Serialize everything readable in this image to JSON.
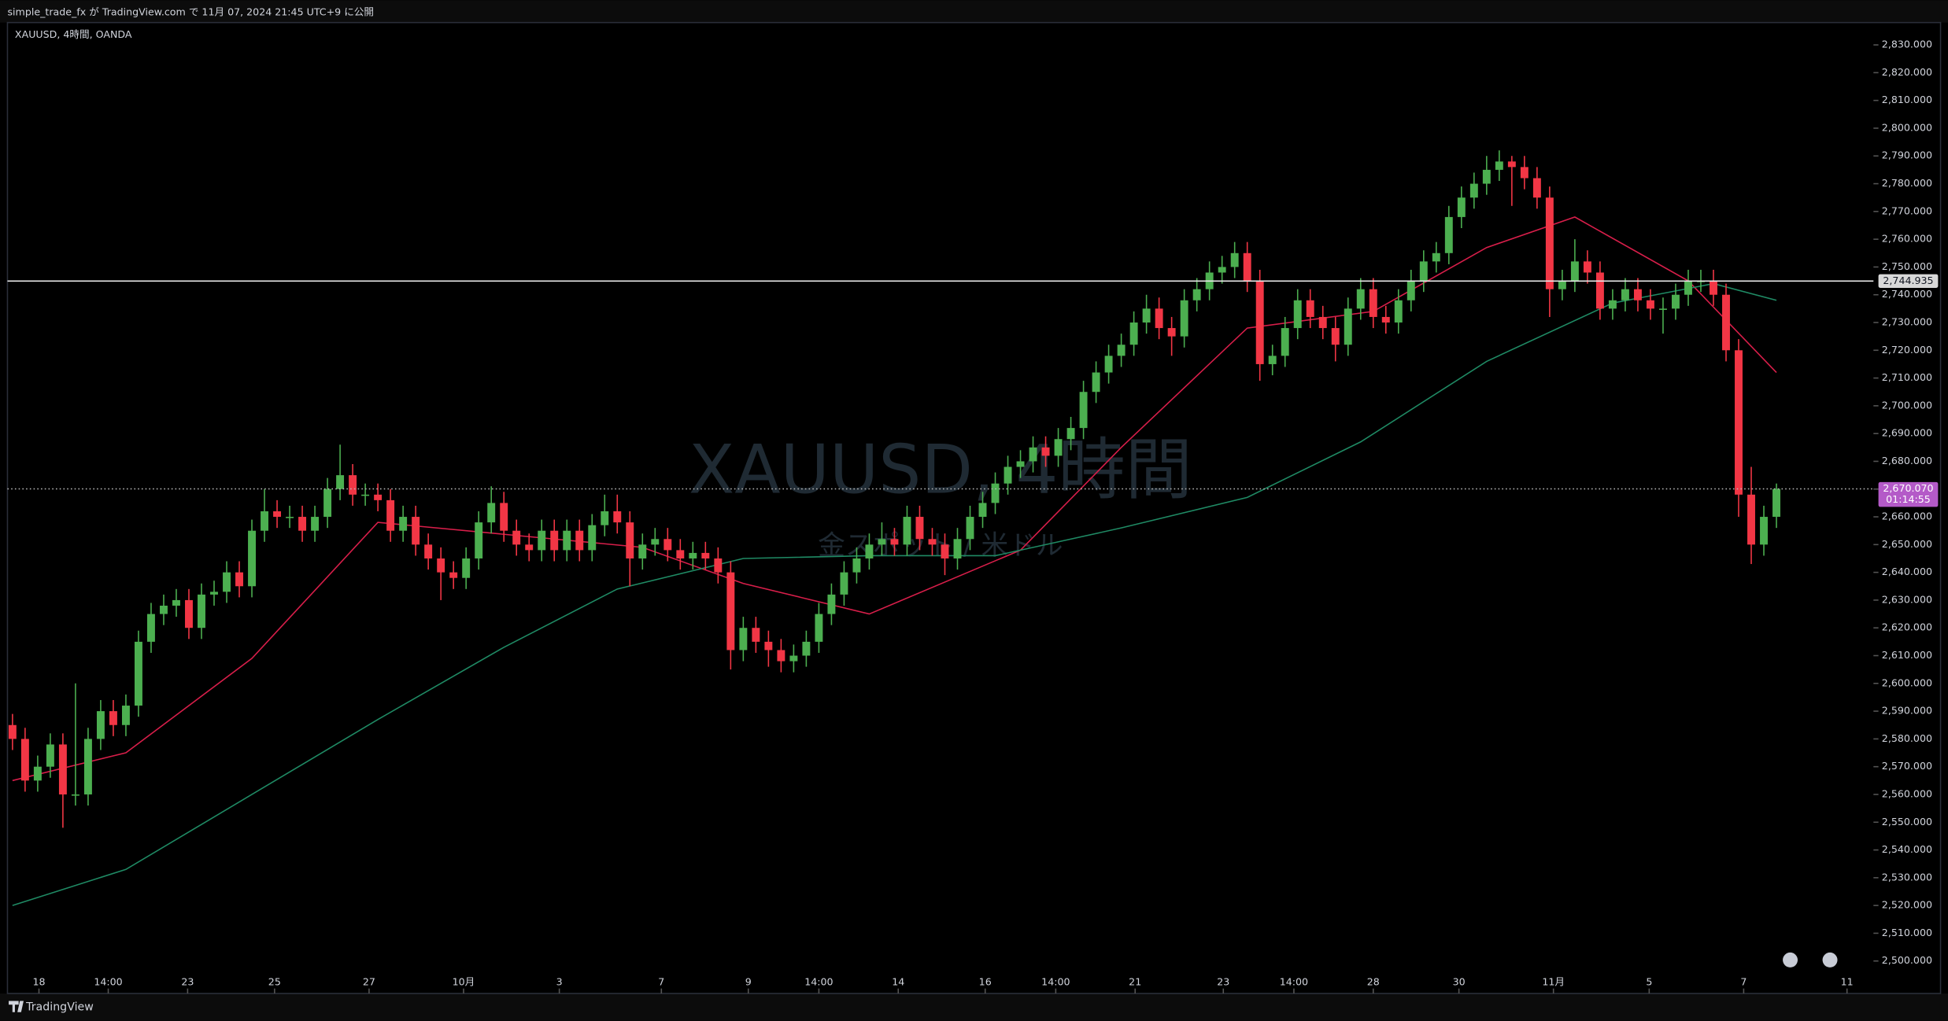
{
  "chart_data": {
    "type": "candlestick",
    "header": "simple_trade_fx が TradingView.com で 11月 07, 2024 21:45 UTC+9 に公開",
    "title": "XAUUSD, 4時間, OANDA",
    "watermark": "XAUUSD, 4時間",
    "watermark_sub": "金スポット / 米ドル",
    "brand": "TradingView",
    "up_color": "#4caf50",
    "down_color": "#f23645",
    "open": [
      2585,
      2580,
      2565,
      2570,
      2578,
      2560,
      2560,
      2580,
      2590,
      2585,
      2592,
      2615,
      2625,
      2628,
      2630,
      2620,
      2632,
      2633,
      2640,
      2635,
      2655,
      2662,
      2660,
      2660,
      2655,
      2660,
      2670,
      2675,
      2668,
      2668,
      2666,
      2655,
      2660,
      2650,
      2645,
      2640,
      2638,
      2645,
      2658,
      2665,
      2655,
      2650,
      2648,
      2655,
      2648,
      2655,
      2648,
      2657,
      2662,
      2658,
      2645,
      2650,
      2652,
      2648,
      2645,
      2647,
      2645,
      2640,
      2612,
      2620,
      2615,
      2612,
      2608,
      2610,
      2615,
      2625,
      2632,
      2640,
      2645,
      2650,
      2652,
      2650,
      2660,
      2652,
      2650,
      2645,
      2652,
      2660,
      2665,
      2672,
      2678,
      2680,
      2685,
      2682,
      2688,
      2692,
      2705,
      2712,
      2718,
      2722,
      2730,
      2735,
      2728,
      2725,
      2738,
      2742,
      2748,
      2750,
      2755,
      2745,
      2715,
      2718,
      2728,
      2738,
      2732,
      2728,
      2722,
      2735,
      2742,
      2732,
      2730,
      2738,
      2745,
      2752,
      2755,
      2768,
      2775,
      2780,
      2785,
      2788,
      2786,
      2782,
      2775,
      2742,
      2745,
      2752,
      2748,
      2735,
      2738,
      2742,
      2738,
      2735,
      2735,
      2740,
      2745,
      2745,
      2740,
      2720,
      2668,
      2650,
      2660
    ],
    "high": [
      2589,
      2584,
      2574,
      2582,
      2582,
      2600,
      2584,
      2594,
      2594,
      2596,
      2619,
      2629,
      2632,
      2634,
      2634,
      2636,
      2637,
      2644,
      2644,
      2659,
      2670,
      2666,
      2664,
      2664,
      2664,
      2674,
      2686,
      2679,
      2672,
      2672,
      2670,
      2664,
      2664,
      2654,
      2649,
      2644,
      2649,
      2662,
      2671,
      2669,
      2659,
      2654,
      2659,
      2659,
      2659,
      2659,
      2661,
      2668,
      2668,
      2662,
      2654,
      2656,
      2656,
      2652,
      2651,
      2651,
      2649,
      2644,
      2624,
      2624,
      2619,
      2616,
      2614,
      2619,
      2629,
      2636,
      2644,
      2649,
      2654,
      2658,
      2656,
      2664,
      2664,
      2656,
      2654,
      2656,
      2664,
      2669,
      2676,
      2682,
      2684,
      2689,
      2689,
      2692,
      2696,
      2709,
      2716,
      2722,
      2726,
      2734,
      2740,
      2739,
      2732,
      2742,
      2746,
      2752,
      2754,
      2759,
      2759,
      2749,
      2722,
      2732,
      2742,
      2742,
      2736,
      2732,
      2739,
      2746,
      2746,
      2736,
      2742,
      2749,
      2756,
      2759,
      2772,
      2779,
      2784,
      2790,
      2792,
      2790,
      2790,
      2786,
      2779,
      2749,
      2760,
      2756,
      2752,
      2742,
      2746,
      2746,
      2742,
      2739,
      2744,
      2749,
      2749,
      2749,
      2744,
      2724,
      2678,
      2664,
      2672
    ],
    "low": [
      2576,
      2561,
      2561,
      2566,
      2548,
      2556,
      2556,
      2576,
      2581,
      2581,
      2588,
      2611,
      2621,
      2624,
      2616,
      2616,
      2628,
      2629,
      2631,
      2631,
      2651,
      2656,
      2656,
      2651,
      2651,
      2656,
      2666,
      2664,
      2664,
      2662,
      2651,
      2651,
      2646,
      2641,
      2630,
      2634,
      2634,
      2641,
      2654,
      2651,
      2646,
      2644,
      2644,
      2644,
      2644,
      2644,
      2644,
      2653,
      2654,
      2635,
      2641,
      2646,
      2644,
      2641,
      2641,
      2641,
      2636,
      2605,
      2608,
      2611,
      2606,
      2604,
      2604,
      2606,
      2611,
      2621,
      2628,
      2636,
      2641,
      2646,
      2646,
      2646,
      2648,
      2646,
      2639,
      2641,
      2648,
      2656,
      2661,
      2668,
      2674,
      2676,
      2678,
      2678,
      2684,
      2688,
      2701,
      2708,
      2714,
      2718,
      2726,
      2724,
      2718,
      2721,
      2734,
      2738,
      2744,
      2746,
      2741,
      2709,
      2711,
      2714,
      2724,
      2728,
      2724,
      2716,
      2718,
      2731,
      2728,
      2726,
      2726,
      2734,
      2741,
      2748,
      2751,
      2764,
      2771,
      2776,
      2781,
      2772,
      2778,
      2771,
      2732,
      2738,
      2741,
      2744,
      2731,
      2731,
      2734,
      2734,
      2731,
      2726,
      2731,
      2736,
      2741,
      2736,
      2716,
      2660,
      2643,
      2646,
      2656
    ],
    "close": [
      2580,
      2565,
      2570,
      2578,
      2560,
      2560,
      2580,
      2590,
      2585,
      2592,
      2615,
      2625,
      2628,
      2630,
      2620,
      2632,
      2633,
      2640,
      2635,
      2655,
      2662,
      2660,
      2660,
      2655,
      2660,
      2670,
      2675,
      2668,
      2668,
      2666,
      2655,
      2660,
      2650,
      2645,
      2640,
      2638,
      2645,
      2658,
      2665,
      2655,
      2650,
      2648,
      2655,
      2648,
      2655,
      2648,
      2657,
      2662,
      2658,
      2645,
      2650,
      2652,
      2648,
      2645,
      2647,
      2645,
      2640,
      2612,
      2620,
      2615,
      2612,
      2608,
      2610,
      2615,
      2625,
      2632,
      2640,
      2645,
      2650,
      2652,
      2650,
      2660,
      2652,
      2650,
      2645,
      2652,
      2660,
      2665,
      2672,
      2678,
      2680,
      2685,
      2682,
      2688,
      2692,
      2705,
      2712,
      2718,
      2722,
      2730,
      2735,
      2728,
      2725,
      2738,
      2742,
      2748,
      2750,
      2755,
      2745,
      2715,
      2718,
      2728,
      2738,
      2732,
      2728,
      2722,
      2735,
      2742,
      2732,
      2730,
      2738,
      2745,
      2752,
      2755,
      2768,
      2775,
      2780,
      2785,
      2788,
      2786,
      2782,
      2775,
      2742,
      2745,
      2752,
      2748,
      2735,
      2738,
      2742,
      2738,
      2735,
      2735,
      2740,
      2745,
      2745,
      2740,
      2720,
      2668,
      2650,
      2660,
      2670.07
    ],
    "lines": [
      {
        "color": "#d81e4a",
        "x": [
          0,
          9,
          19,
          29,
          50,
          58,
          68,
          80,
          88,
          98,
          108,
          117,
          124,
          133,
          140
        ],
        "values": [
          2565,
          2575,
          2609,
          2658,
          2649,
          2636,
          2625,
          2648,
          2685,
          2728,
          2734,
          2757,
          2768,
          2745,
          2712
        ]
      },
      {
        "color": "#1f8a64",
        "x": [
          0,
          9,
          19,
          29,
          39,
          48,
          58,
          68,
          78,
          88,
          98,
          107,
          117,
          127,
          135,
          140
        ],
        "values": [
          2520,
          2533,
          2560,
          2587,
          2613,
          2634,
          2645,
          2646,
          2646,
          2656,
          2667,
          2687,
          2716,
          2737,
          2744,
          2738
        ]
      }
    ],
    "levels": [
      {
        "value": 2744.935,
        "label": "2,744.935",
        "style": "solid"
      },
      {
        "value": 2670.07,
        "label": "2,670.070",
        "countdown": "01:14:55",
        "style": "dotted"
      }
    ],
    "xlim": [
      -0.4,
      147.7
    ],
    "xticks": [
      {
        "value": 2.1,
        "label": "18"
      },
      {
        "value": 7.6,
        "label": "14:00"
      },
      {
        "value": 13.9,
        "label": "23"
      },
      {
        "value": 20.8,
        "label": "25"
      },
      {
        "value": 28.3,
        "label": "27"
      },
      {
        "value": 35.8,
        "label": "10月"
      },
      {
        "value": 43.4,
        "label": "3"
      },
      {
        "value": 51.5,
        "label": "7"
      },
      {
        "value": 58.4,
        "label": "9"
      },
      {
        "value": 64,
        "label": "14:00"
      },
      {
        "value": 70.3,
        "label": "14"
      },
      {
        "value": 77.2,
        "label": "16"
      },
      {
        "value": 82.8,
        "label": "14:00"
      },
      {
        "value": 89.1,
        "label": "21"
      },
      {
        "value": 96.1,
        "label": "23"
      },
      {
        "value": 101.7,
        "label": "14:00"
      },
      {
        "value": 108,
        "label": "28"
      },
      {
        "value": 114.8,
        "label": "30"
      },
      {
        "value": 122.3,
        "label": "11月"
      },
      {
        "value": 129.9,
        "label": "5"
      },
      {
        "value": 137.4,
        "label": "7"
      },
      {
        "value": 145.6,
        "label": "11"
      }
    ],
    "ylim": [
      2488.3,
      2838.05
    ],
    "yticks": [
      {
        "value": 2500,
        "label": "2,500.000"
      },
      {
        "value": 2510,
        "label": "2,510.000"
      },
      {
        "value": 2520,
        "label": "2,520.000"
      },
      {
        "value": 2530,
        "label": "2,530.000"
      },
      {
        "value": 2540,
        "label": "2,540.000"
      },
      {
        "value": 2550,
        "label": "2,550.000"
      },
      {
        "value": 2560,
        "label": "2,560.000"
      },
      {
        "value": 2570,
        "label": "2,570.000"
      },
      {
        "value": 2580,
        "label": "2,580.000"
      },
      {
        "value": 2590,
        "label": "2,590.000"
      },
      {
        "value": 2600,
        "label": "2,600.000"
      },
      {
        "value": 2610,
        "label": "2,610.000"
      },
      {
        "value": 2620,
        "label": "2,620.000"
      },
      {
        "value": 2630,
        "label": "2,630.000"
      },
      {
        "value": 2640,
        "label": "2,640.000"
      },
      {
        "value": 2650,
        "label": "2,650.000"
      },
      {
        "value": 2660,
        "label": "2,660.000"
      },
      {
        "value": 2670,
        "label": "2,670.000"
      },
      {
        "value": 2680,
        "label": "2,680.000"
      },
      {
        "value": 2690,
        "label": "2,690.000"
      },
      {
        "value": 2700,
        "label": "2,700.000"
      },
      {
        "value": 2710,
        "label": "2,710.000"
      },
      {
        "value": 2720,
        "label": "2,720.000"
      },
      {
        "value": 2730,
        "label": "2,730.000"
      },
      {
        "value": 2740,
        "label": "2,740.000"
      },
      {
        "value": 2750,
        "label": "2,750.000"
      },
      {
        "value": 2760,
        "label": "2,760.000"
      },
      {
        "value": 2770,
        "label": "2,770.000"
      },
      {
        "value": 2780,
        "label": "2,780.000"
      },
      {
        "value": 2790,
        "label": "2,790.000"
      },
      {
        "value": 2800,
        "label": "2,800.000"
      },
      {
        "value": 2810,
        "label": "2,810.000"
      },
      {
        "value": 2820,
        "label": "2,820.000"
      },
      {
        "value": 2830,
        "label": "2,830.000"
      }
    ]
  }
}
